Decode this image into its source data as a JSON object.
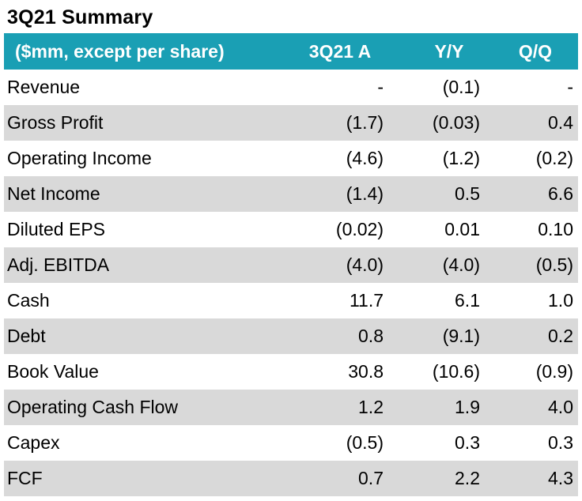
{
  "title": "3Q21 Summary",
  "header": {
    "label": "($mm, except per share)",
    "col1": "3Q21 A",
    "col2": "Y/Y",
    "col3": "Q/Q"
  },
  "rows": [
    {
      "label": "Revenue",
      "a": "-",
      "yy": "(0.1)",
      "qq": "-"
    },
    {
      "label": "Gross Profit",
      "a": "(1.7)",
      "yy": "(0.03)",
      "qq": "0.4"
    },
    {
      "label": "Operating Income",
      "a": "(4.6)",
      "yy": "(1.2)",
      "qq": "(0.2)"
    },
    {
      "label": "Net Income",
      "a": "(1.4)",
      "yy": "0.5",
      "qq": "6.6"
    },
    {
      "label": "Diluted EPS",
      "a": "(0.02)",
      "yy": "0.01",
      "qq": "0.10"
    },
    {
      "label": "Adj. EBITDA",
      "a": "(4.0)",
      "yy": "(4.0)",
      "qq": "(0.5)"
    },
    {
      "label": "Cash",
      "a": "11.7",
      "yy": "6.1",
      "qq": "1.0"
    },
    {
      "label": "Debt",
      "a": "0.8",
      "yy": "(9.1)",
      "qq": "0.2"
    },
    {
      "label": "Book Value",
      "a": "30.8",
      "yy": "(10.6)",
      "qq": "(0.9)"
    },
    {
      "label": "Operating Cash Flow",
      "a": "1.2",
      "yy": "1.9",
      "qq": "4.0"
    },
    {
      "label": "Capex",
      "a": "(0.5)",
      "yy": "0.3",
      "qq": "0.3"
    },
    {
      "label": "FCF",
      "a": "0.7",
      "yy": "2.2",
      "qq": "4.3"
    }
  ],
  "colors": {
    "header_bg": "#1a9fb4",
    "stripe_bg": "#d9d9d9"
  }
}
